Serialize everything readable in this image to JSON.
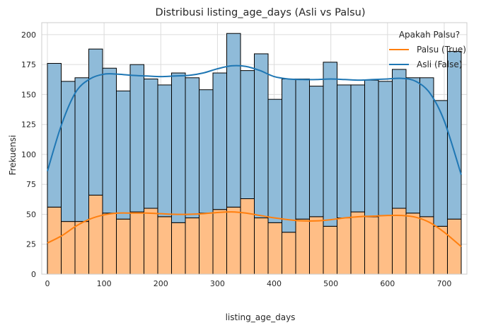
{
  "chart_data": {
    "type": "bar",
    "title": "Distribusi listing_age_days (Asli vs Palsu)",
    "xlabel": "listing_age_days",
    "ylabel": "Frekuensi",
    "xlim": [
      -10,
      740
    ],
    "ylim": [
      0,
      210
    ],
    "x_ticks": [
      0,
      100,
      200,
      300,
      400,
      500,
      600,
      700
    ],
    "y_ticks": [
      0,
      25,
      50,
      75,
      100,
      125,
      150,
      175,
      200
    ],
    "grid": true,
    "stacked": true,
    "bin_edges": [
      0,
      24.33,
      48.67,
      73,
      97.33,
      121.67,
      146,
      170.33,
      194.67,
      219,
      243.33,
      267.67,
      292,
      316.33,
      340.67,
      365,
      389.33,
      413.67,
      438,
      462.33,
      486.67,
      511,
      535.33,
      559.67,
      584,
      608.33,
      632.67,
      657,
      681.33,
      705.67,
      730
    ],
    "legend": {
      "title": "Apakah Palsu?",
      "position": "top-right",
      "entries": [
        {
          "label": "Palsu (True)",
          "color": "#ff7f0e"
        },
        {
          "label": "Asli (False)",
          "color": "#1f77b4"
        }
      ]
    },
    "series": [
      {
        "name": "Palsu (True)",
        "color": "#ff7f0e",
        "fill": "#ffbe86",
        "values": [
          56,
          44,
          44,
          66,
          51,
          46,
          52,
          55,
          48,
          43,
          47,
          51,
          54,
          56,
          63,
          47,
          43,
          35,
          46,
          48,
          40,
          47,
          52,
          48,
          49,
          55,
          51,
          48,
          40,
          46
        ]
      },
      {
        "name": "Asli (False)",
        "color": "#1f77b4",
        "fill": "#8fbbd9",
        "values": [
          120,
          117,
          120,
          122,
          121,
          107,
          123,
          108,
          110,
          125,
          117,
          103,
          114,
          145,
          107,
          137,
          103,
          128,
          117,
          109,
          137,
          111,
          106,
          114,
          112,
          116,
          113,
          116,
          105,
          140
        ]
      }
    ],
    "kde": [
      {
        "name": "Palsu (True)",
        "color": "#ff7f0e",
        "x": [
          0,
          25,
          50,
          75,
          100,
          125,
          150,
          175,
          200,
          225,
          250,
          275,
          300,
          325,
          350,
          375,
          400,
          425,
          450,
          475,
          500,
          525,
          550,
          575,
          600,
          625,
          650,
          675,
          700,
          730
        ],
        "y": [
          26,
          32,
          40,
          46,
          49.5,
          51,
          51,
          51,
          50.5,
          50,
          50,
          50.5,
          51.5,
          52,
          51,
          49,
          47,
          45.5,
          44.5,
          44.5,
          45.5,
          47,
          48,
          48.5,
          49,
          49,
          47.5,
          43,
          35,
          23
        ]
      },
      {
        "name": "Asli (False)",
        "color": "#1f77b4",
        "x": [
          0,
          25,
          50,
          75,
          100,
          125,
          150,
          175,
          200,
          225,
          250,
          275,
          300,
          325,
          350,
          375,
          400,
          425,
          450,
          475,
          500,
          525,
          550,
          575,
          600,
          625,
          650,
          675,
          700,
          730
        ],
        "y": [
          86,
          125,
          152,
          163,
          167,
          167,
          166,
          165.5,
          165,
          165.5,
          166,
          168,
          171.5,
          174,
          173.5,
          170,
          165,
          163,
          162.5,
          162.5,
          163,
          162.5,
          162,
          162.5,
          163,
          163.5,
          161,
          151,
          128,
          83
        ]
      }
    ]
  }
}
